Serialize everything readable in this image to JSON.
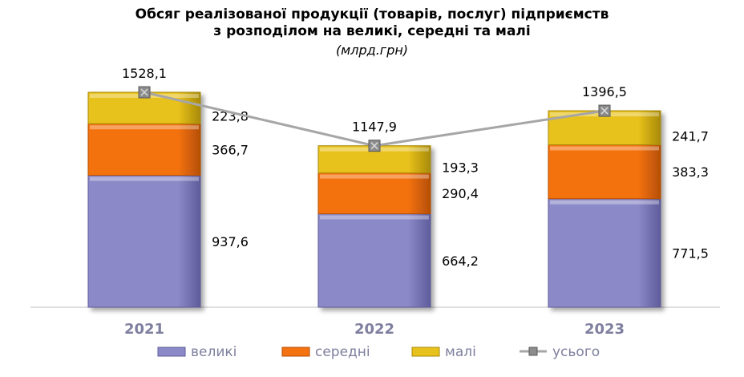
{
  "chart_data": {
    "type": "bar",
    "stacked": true,
    "title_line1": "Обсяг реалізованої продукції (товарів, послуг) підприємств",
    "title_line2": "з розподілом на великі, середні та малі",
    "subtitle": "(млрд.грн)",
    "categories": [
      "2021",
      "2022",
      "2023"
    ],
    "series": [
      {
        "name": "великі",
        "values": [
          937.6,
          664.2,
          771.5
        ],
        "labels": [
          "937,6",
          "664,2",
          "771,5"
        ],
        "color": "#8B89C7",
        "dark": "#5E5C9A"
      },
      {
        "name": "середні",
        "values": [
          366.7,
          290.4,
          383.3
        ],
        "labels": [
          "366,7",
          "290,4",
          "383,3"
        ],
        "color": "#F4720F",
        "dark": "#B54F05"
      },
      {
        "name": "малі",
        "values": [
          223.8,
          193.3,
          241.7
        ],
        "labels": [
          "223,8",
          "193,3",
          "241,7"
        ],
        "color": "#E8C21C",
        "dark": "#A88A08"
      }
    ],
    "line_series": {
      "name": "усього",
      "values": [
        1528.1,
        1147.9,
        1396.5
      ],
      "labels": [
        "1528,1",
        "1147,9",
        "1396,5"
      ],
      "color": "#A6A6A6"
    },
    "ylim": [
      0,
      1700
    ],
    "legend_position": "bottom"
  }
}
